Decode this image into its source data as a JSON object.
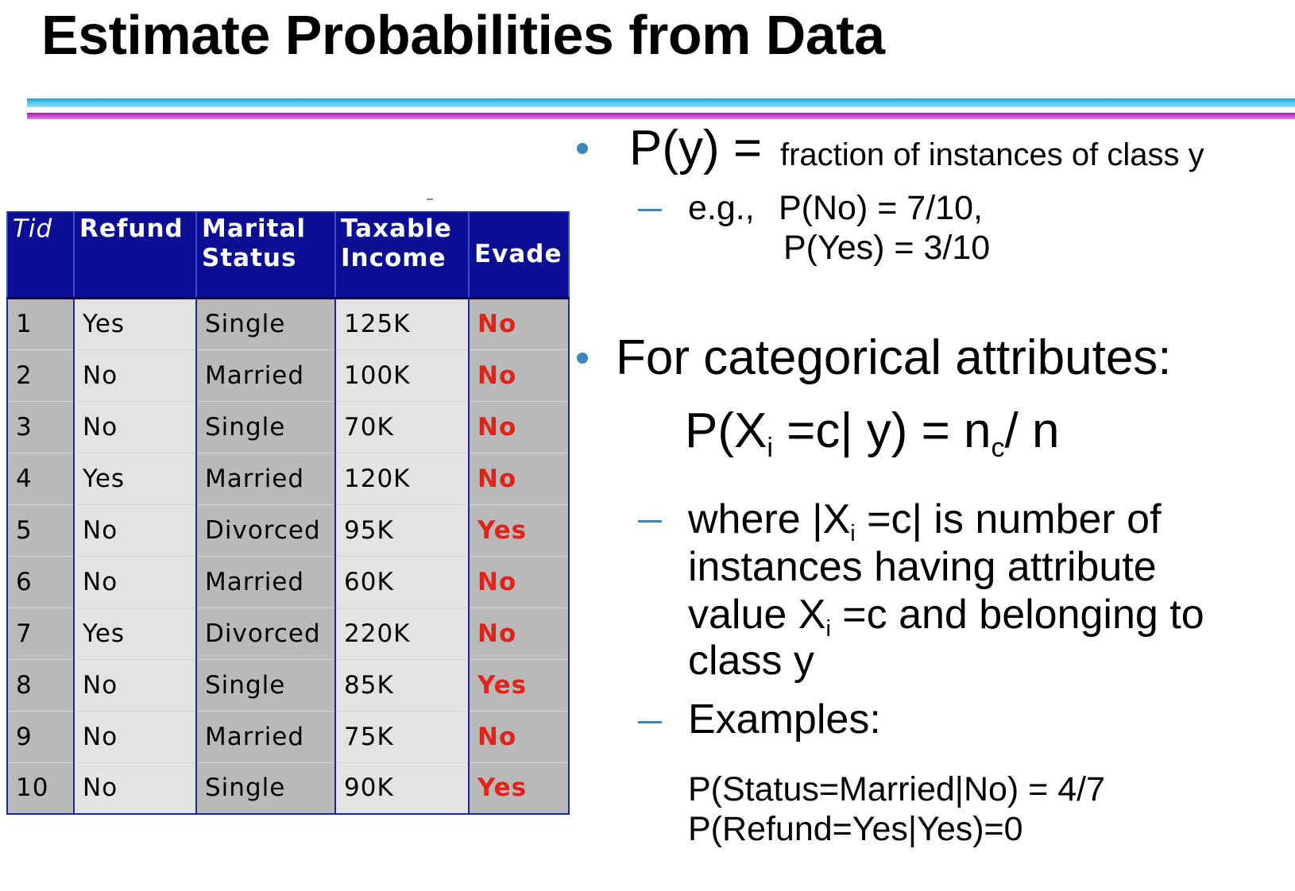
{
  "slide": {
    "title": "Estimate Probabilities from Data"
  },
  "table": {
    "headers": {
      "tid": "Tid",
      "refund": "Refund",
      "marital_status_line1": "Marital",
      "marital_status_line2": "Status",
      "taxable_income_line1": "Taxable",
      "taxable_income_line2": "Income",
      "evade": "Evade"
    },
    "rows": [
      {
        "tid": "1",
        "refund": "Yes",
        "status": "Single",
        "income": "125K",
        "evade": "No"
      },
      {
        "tid": "2",
        "refund": "No",
        "status": "Married",
        "income": "100K",
        "evade": "No"
      },
      {
        "tid": "3",
        "refund": "No",
        "status": "Single",
        "income": "70K",
        "evade": "No"
      },
      {
        "tid": "4",
        "refund": "Yes",
        "status": "Married",
        "income": "120K",
        "evade": "No"
      },
      {
        "tid": "5",
        "refund": "No",
        "status": "Divorced",
        "income": "95K",
        "evade": "Yes"
      },
      {
        "tid": "6",
        "refund": "No",
        "status": "Married",
        "income": "60K",
        "evade": "No"
      },
      {
        "tid": "7",
        "refund": "Yes",
        "status": "Divorced",
        "income": "220K",
        "evade": "No"
      },
      {
        "tid": "8",
        "refund": "No",
        "status": "Single",
        "income": "85K",
        "evade": "Yes"
      },
      {
        "tid": "9",
        "refund": "No",
        "status": "Married",
        "income": "75K",
        "evade": "No"
      },
      {
        "tid": "10",
        "refund": "No",
        "status": "Single",
        "income": "90K",
        "evade": "Yes"
      }
    ]
  },
  "bullets": {
    "prior": {
      "formula": "P(y) =",
      "description": "fraction of instances of class y",
      "example_prefix": "e.g.,",
      "example_1": "P(No) = 7/10,",
      "example_2": "P(Yes) = 3/10"
    },
    "categorical": {
      "heading": "For categorical attributes:",
      "formula_p": "P(X",
      "formula_i": "i",
      "formula_mid": " =c| y) = n",
      "formula_c": "c",
      "formula_end": "/ n",
      "where_a": "where |X",
      "where_i": "i",
      "where_b": " =c| is number of",
      "where_line2": "instances having attribute",
      "where_c": "value X",
      "where_i2": "i",
      "where_d": " =c and belonging to",
      "where_line4": "class y",
      "examples_label": "Examples:",
      "example_1": "P(Status=Married|No) = 4/7",
      "example_2": "P(Refund=Yes|Yes)=0"
    }
  },
  "colors": {
    "table_header_bg": "#0c0f93",
    "evade_text": "#e0241a",
    "bullet": "#3d86b8",
    "rule_cyan": "#1b9ccc",
    "rule_magenta": "#c040c8"
  }
}
